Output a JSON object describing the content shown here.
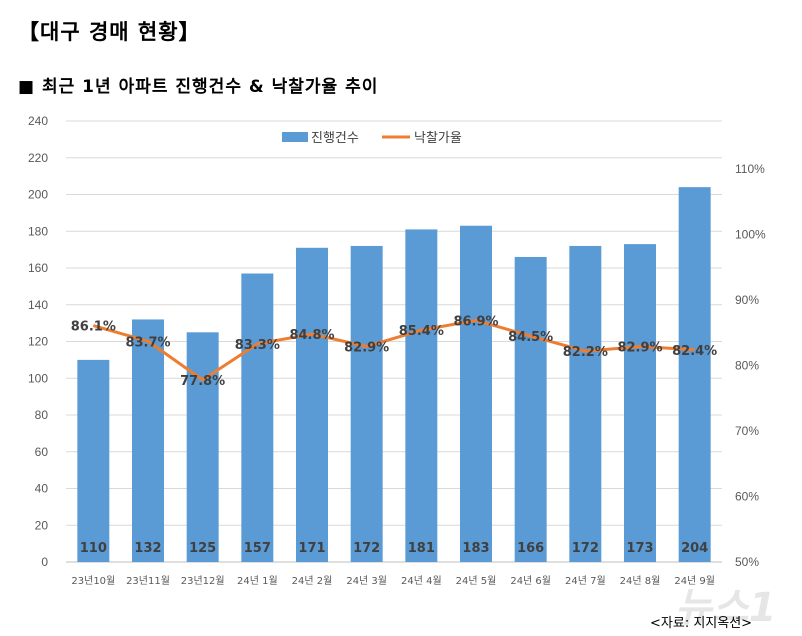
{
  "header": {
    "title": "【대구 경매 현황】",
    "subtitle": "■ 최근 1년 아파트 진행건수 & 낙찰가율 추이"
  },
  "source": "<자료: 지지옥션>",
  "watermark": "뉴스1",
  "chart_data": {
    "type": "bar+line",
    "categories": [
      "23년10월",
      "23년11월",
      "23년12월",
      "24년 1월",
      "24년 2월",
      "24년 3월",
      "24년 4월",
      "24년 5월",
      "24년 6월",
      "24년 7월",
      "24년 8월",
      "24년 9월"
    ],
    "series": [
      {
        "name": "진행건수",
        "type": "bar",
        "axis": "left",
        "color": "#5b9bd5",
        "values": [
          110,
          132,
          125,
          157,
          171,
          172,
          181,
          183,
          166,
          172,
          173,
          204
        ],
        "labels": [
          "110",
          "132",
          "125",
          "157",
          "171",
          "172",
          "181",
          "183",
          "166",
          "172",
          "173",
          "204"
        ]
      },
      {
        "name": "낙찰가율",
        "type": "line",
        "axis": "right",
        "color": "#ed7d31",
        "values": [
          86.1,
          83.7,
          77.8,
          83.3,
          84.8,
          82.9,
          85.4,
          86.9,
          84.5,
          82.2,
          82.9,
          82.4
        ],
        "labels": [
          "86.1%",
          "83.7%",
          "77.8%",
          "83.3%",
          "84.8%",
          "82.9%",
          "85.4%",
          "86.9%",
          "84.5%",
          "82.2%",
          "82.9%",
          "82.4%"
        ]
      }
    ],
    "left_axis": {
      "ylim": [
        0,
        240
      ],
      "ticks": [
        "0",
        "20",
        "40",
        "60",
        "80",
        "100",
        "120",
        "140",
        "160",
        "180",
        "200",
        "220",
        "240"
      ]
    },
    "right_axis": {
      "ticks": [
        "50%",
        "60%",
        "70%",
        "80%",
        "90%",
        "100%",
        "110%"
      ],
      "tick_values": [
        50,
        60,
        70,
        80,
        90,
        100,
        110
      ]
    },
    "grid": true,
    "legend": "top"
  }
}
